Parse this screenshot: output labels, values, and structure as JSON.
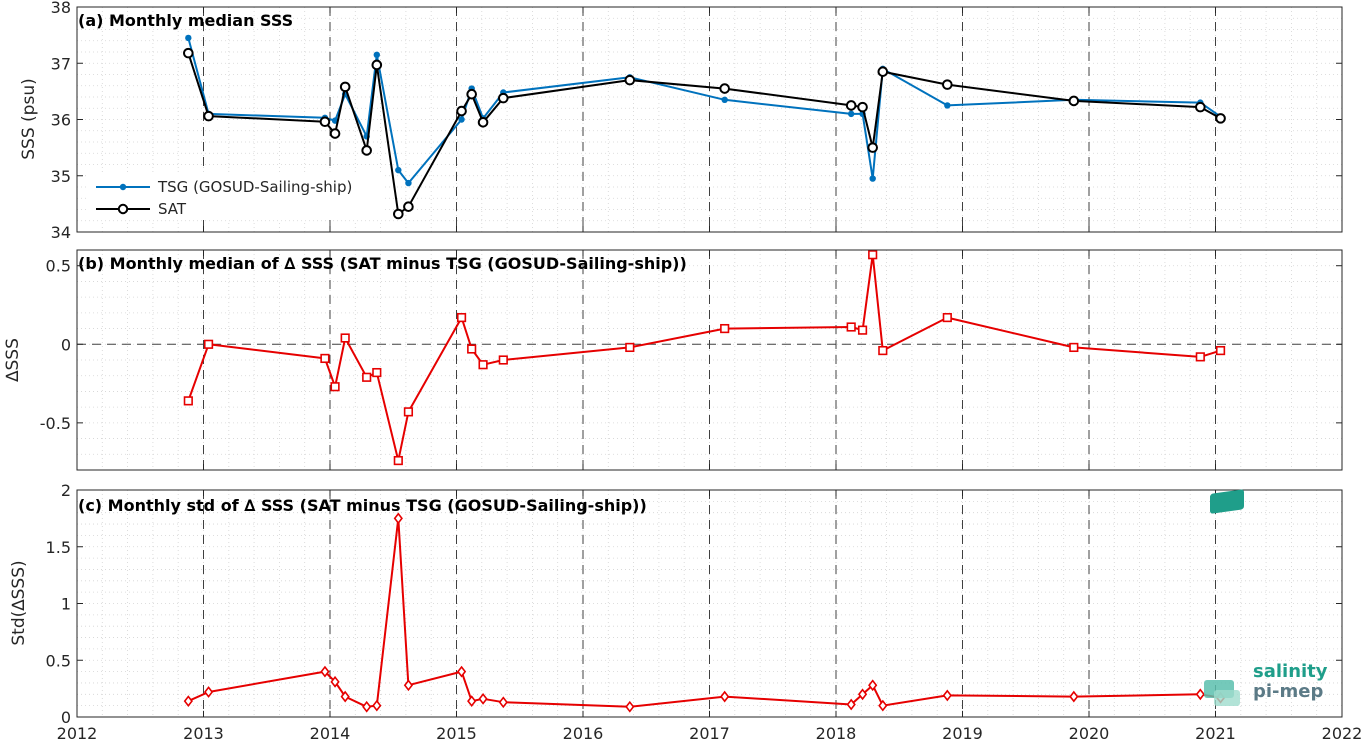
{
  "colors": {
    "tsg": "#0072bd",
    "sat": "#000000",
    "diff": "#e60000",
    "logo": "#1f9e8a"
  },
  "logo": {
    "line1": "salinity",
    "line2": "pi-mep"
  },
  "chart_data": [
    {
      "type": "line",
      "title": "(a) Monthly median SSS",
      "ylabel": "SSS (psu)",
      "xlim": [
        2012,
        2022
      ],
      "ylim": [
        34,
        38
      ],
      "yticks": [
        34,
        35,
        36,
        37,
        38
      ],
      "xticks": [
        2012,
        2013,
        2014,
        2015,
        2016,
        2017,
        2018,
        2019,
        2020,
        2021,
        2022
      ],
      "grid": true,
      "legend_position": "lower-left",
      "series": [
        {
          "name": "TSG (GOSUD-Sailing-ship)",
          "marker": "dot",
          "x": [
            2012.88,
            2013.04,
            2013.96,
            2014.04,
            2014.12,
            2014.29,
            2014.37,
            2014.54,
            2014.62,
            2015.04,
            2015.12,
            2015.21,
            2015.37,
            2016.37,
            2017.12,
            2018.12,
            2018.21,
            2018.29,
            2018.37,
            2018.88,
            2019.88,
            2020.88,
            2021.04
          ],
          "y": [
            37.45,
            36.1,
            36.03,
            35.98,
            36.45,
            35.7,
            37.15,
            35.1,
            34.87,
            36.0,
            36.55,
            36.02,
            36.48,
            36.75,
            36.35,
            36.1,
            36.1,
            34.95,
            36.9,
            36.25,
            36.35,
            36.3,
            36.05
          ]
        },
        {
          "name": "SAT",
          "marker": "circle",
          "x": [
            2012.88,
            2013.04,
            2013.96,
            2014.04,
            2014.12,
            2014.29,
            2014.37,
            2014.54,
            2014.62,
            2015.04,
            2015.12,
            2015.21,
            2015.37,
            2016.37,
            2017.12,
            2018.12,
            2018.21,
            2018.29,
            2018.37,
            2018.88,
            2019.88,
            2020.88,
            2021.04
          ],
          "y": [
            37.18,
            36.06,
            35.96,
            35.75,
            36.58,
            35.45,
            36.97,
            34.32,
            34.45,
            36.15,
            36.45,
            35.95,
            36.38,
            36.7,
            36.55,
            36.25,
            36.22,
            35.5,
            36.85,
            36.62,
            36.33,
            36.22,
            36.02
          ]
        }
      ]
    },
    {
      "type": "line",
      "title": "(b) Monthly median of ∆ SSS (SAT minus TSG (GOSUD-Sailing-ship))",
      "ylabel": "∆SSS",
      "xlim": [
        2012,
        2022
      ],
      "ylim": [
        -0.8,
        0.6
      ],
      "yticks": [
        -0.5,
        0,
        0.5
      ],
      "ytick_labels": [
        "-0.5",
        "0",
        "0.5"
      ],
      "xticks": [
        2012,
        2013,
        2014,
        2015,
        2016,
        2017,
        2018,
        2019,
        2020,
        2021,
        2022
      ],
      "grid": true,
      "zero_line": true,
      "series": [
        {
          "marker": "square",
          "x": [
            2012.88,
            2013.04,
            2013.96,
            2014.04,
            2014.12,
            2014.29,
            2014.37,
            2014.54,
            2014.62,
            2015.04,
            2015.12,
            2015.21,
            2015.37,
            2016.37,
            2017.12,
            2018.12,
            2018.21,
            2018.29,
            2018.37,
            2018.88,
            2019.88,
            2020.88,
            2021.04
          ],
          "y": [
            -0.36,
            0.0,
            -0.09,
            -0.27,
            0.04,
            -0.21,
            -0.18,
            -0.74,
            -0.43,
            0.17,
            -0.03,
            -0.13,
            -0.1,
            -0.02,
            0.1,
            0.11,
            0.09,
            0.57,
            -0.04,
            0.17,
            -0.02,
            -0.08,
            -0.04
          ]
        }
      ]
    },
    {
      "type": "line",
      "title": "(c) Monthly std of ∆ SSS (SAT minus TSG (GOSUD-Sailing-ship))",
      "ylabel": "Std(∆SSS)",
      "xlim": [
        2012,
        2022
      ],
      "ylim": [
        0,
        2
      ],
      "yticks": [
        0,
        0.5,
        1,
        1.5,
        2
      ],
      "ytick_labels": [
        "0",
        "0.5",
        "1",
        "1.5",
        "2"
      ],
      "xticks": [
        2012,
        2013,
        2014,
        2015,
        2016,
        2017,
        2018,
        2019,
        2020,
        2021,
        2022
      ],
      "grid": true,
      "series": [
        {
          "marker": "diamond",
          "x": [
            2012.88,
            2013.04,
            2013.96,
            2014.04,
            2014.12,
            2014.29,
            2014.37,
            2014.54,
            2014.62,
            2015.04,
            2015.12,
            2015.21,
            2015.37,
            2016.37,
            2017.12,
            2018.12,
            2018.21,
            2018.29,
            2018.37,
            2018.88,
            2019.88,
            2020.88,
            2021.04
          ],
          "y": [
            0.14,
            0.22,
            0.4,
            0.31,
            0.18,
            0.09,
            0.1,
            1.75,
            0.28,
            0.4,
            0.14,
            0.16,
            0.13,
            0.09,
            0.18,
            0.11,
            0.2,
            0.28,
            0.1,
            0.19,
            0.18,
            0.2,
            0.17
          ]
        }
      ]
    }
  ]
}
